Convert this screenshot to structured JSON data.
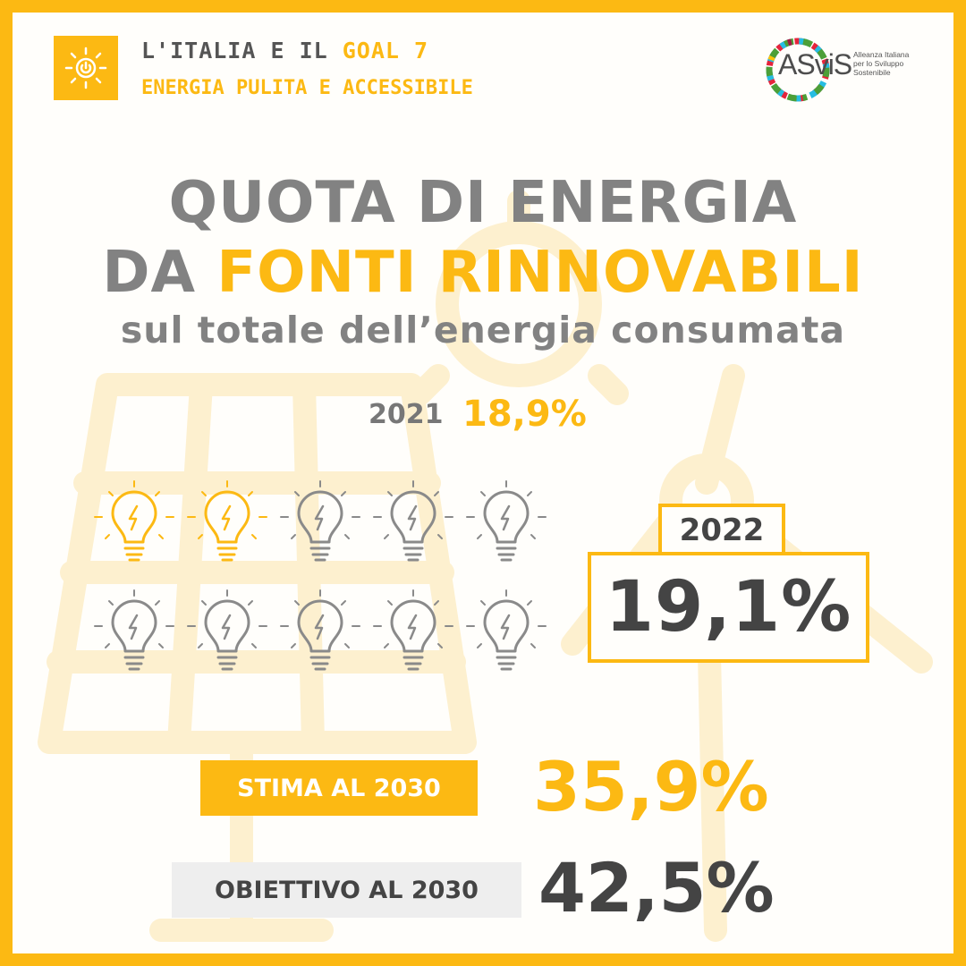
{
  "header": {
    "line1_prefix": "L'ITALIA E IL",
    "line1_goal": "GOAL 7",
    "line2": "ENERGIA PULITA E ACCESSIBILE",
    "badge_icon": "sun-power-icon"
  },
  "logo": {
    "word": "ASviS",
    "sub_line1": "Alleanza Italiana",
    "sub_line2": "per lo Sviluppo",
    "sub_line3": "Sostenibile"
  },
  "title": {
    "line1": "QUOTA DI ENERGIA",
    "line2_prefix": "DA",
    "line2_accent": "FONTI RINNOVABILI",
    "subtitle": "sul totale dell’energia consumata"
  },
  "y2021": {
    "year": "2021",
    "value": "18,9%"
  },
  "bulbs": {
    "total": 10,
    "lit": 2,
    "icon": "lightbulb-icon"
  },
  "y2022": {
    "year": "2022",
    "value": "19,1%"
  },
  "estimate": {
    "label": "STIMA AL 2030",
    "value": "35,9%"
  },
  "target": {
    "label": "OBIETTIVO AL 2030",
    "value": "42,5%"
  },
  "colors": {
    "accent": "#fcb913",
    "dark": "#444444",
    "gray": "#828282",
    "bulb_off": "#8a8a8a",
    "bg_art": "#fdf0cf"
  }
}
